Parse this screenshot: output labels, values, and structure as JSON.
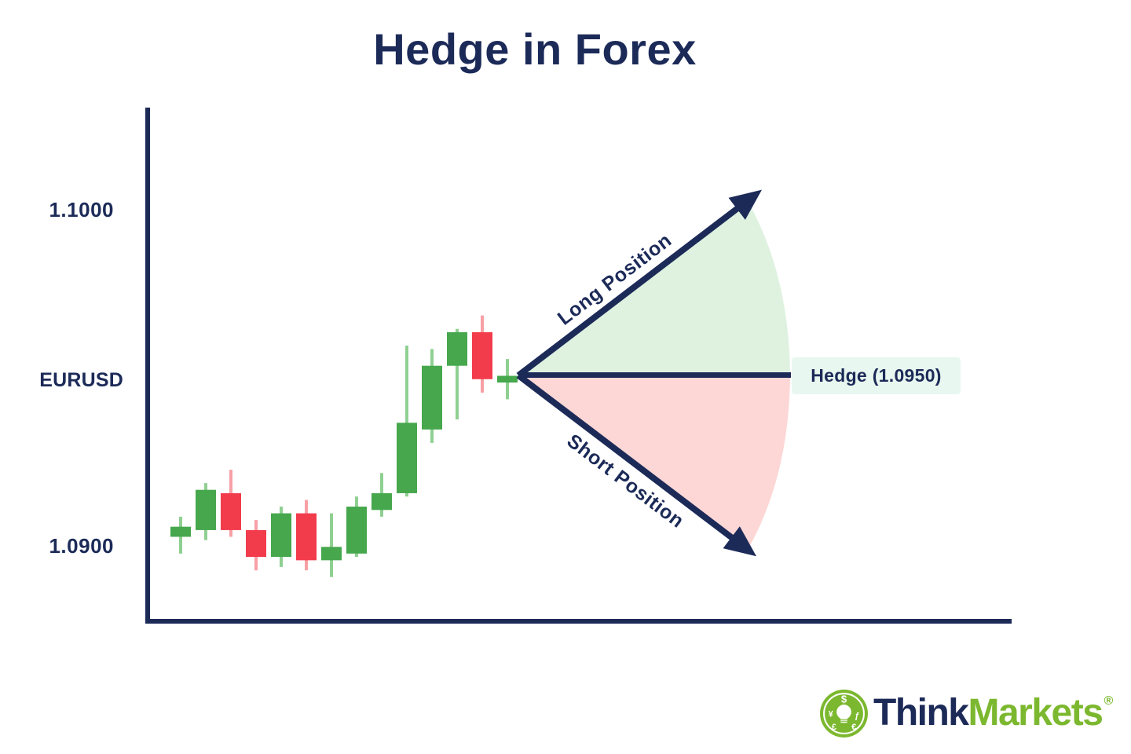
{
  "title": "Hedge in Forex",
  "chart_data": {
    "type": "candlestick",
    "symbol": "EURUSD",
    "y_axis": {
      "ticks": [
        "1.1000",
        "1.0900"
      ],
      "range": [
        1.0875,
        1.103
      ],
      "grid": false
    },
    "candles": [
      {
        "o": 1.0902,
        "h": 1.0908,
        "l": 1.0897,
        "c": 1.0905
      },
      {
        "o": 1.0904,
        "h": 1.0918,
        "l": 1.0901,
        "c": 1.0916
      },
      {
        "o": 1.0915,
        "h": 1.0922,
        "l": 1.0902,
        "c": 1.0904
      },
      {
        "o": 1.0904,
        "h": 1.0907,
        "l": 1.0892,
        "c": 1.0896
      },
      {
        "o": 1.0896,
        "h": 1.0911,
        "l": 1.0893,
        "c": 1.0909
      },
      {
        "o": 1.0909,
        "h": 1.0913,
        "l": 1.0892,
        "c": 1.0895
      },
      {
        "o": 1.0895,
        "h": 1.0909,
        "l": 1.089,
        "c": 1.0899
      },
      {
        "o": 1.0897,
        "h": 1.0914,
        "l": 1.0896,
        "c": 1.0911
      },
      {
        "o": 1.091,
        "h": 1.0921,
        "l": 1.0908,
        "c": 1.0915
      },
      {
        "o": 1.0915,
        "h": 1.0959,
        "l": 1.0914,
        "c": 1.0936
      },
      {
        "o": 1.0934,
        "h": 1.0958,
        "l": 1.093,
        "c": 1.0953
      },
      {
        "o": 1.0953,
        "h": 1.0964,
        "l": 1.0937,
        "c": 1.0963
      },
      {
        "o": 1.0963,
        "h": 1.0968,
        "l": 1.0945,
        "c": 1.0949
      },
      {
        "o": 1.0948,
        "h": 1.0955,
        "l": 1.0943,
        "c": 1.095
      }
    ],
    "annotations": {
      "long_label": "Long Position",
      "short_label": "Short Position",
      "hedge_label": "Hedge (1.0950)",
      "hedge_price": 1.095
    }
  },
  "colors": {
    "navy": "#1c2a58",
    "candle_up": "#46a74d",
    "candle_up_wick": "#8fd092",
    "candle_down": "#f23c4c",
    "candle_down_wick": "#f7a0a6",
    "fan_up": "#dff2e0",
    "fan_down": "#fcd7d6",
    "hedge_box_bg": "#e8f7ef",
    "logo_green": "#7cb82f"
  },
  "logo": {
    "brand_prefix": "Think",
    "brand_suffix": "Markets",
    "registered": "®",
    "icon": "lightbulb-currency-icon",
    "currency_glyphs": [
      "$",
      "¥",
      "ƒ",
      "£",
      "€"
    ]
  }
}
